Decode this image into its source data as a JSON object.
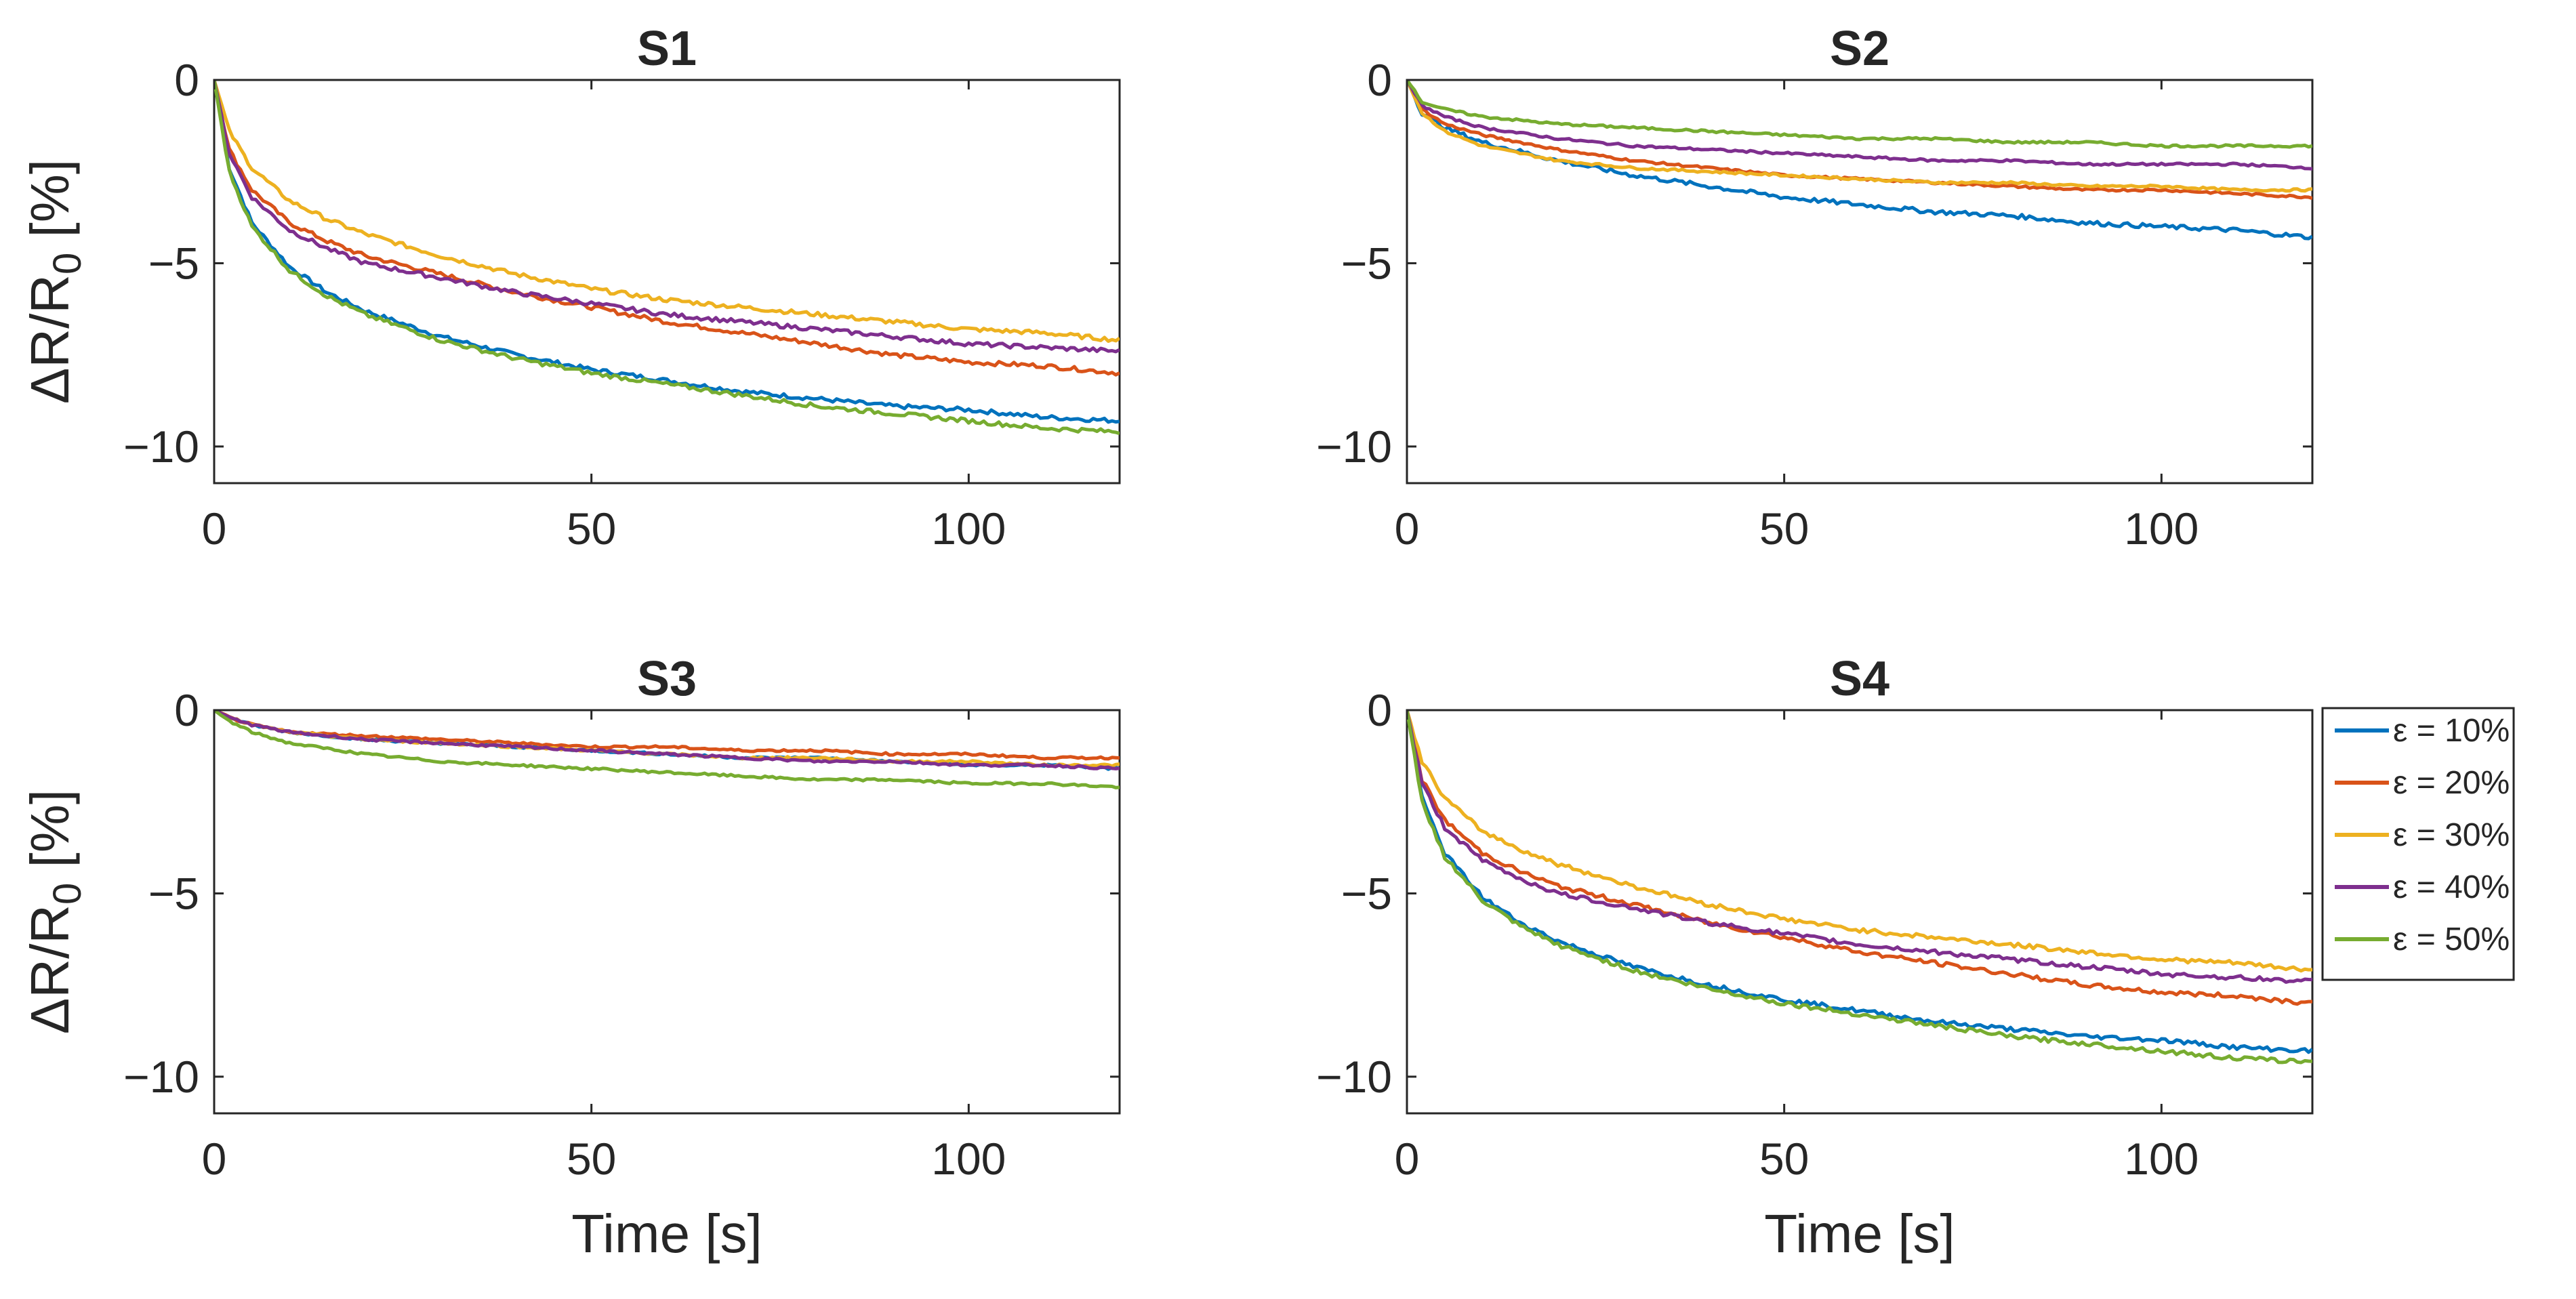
{
  "chart_data": [
    {
      "type": "line",
      "title": "S1",
      "xlabel": "",
      "ylabel": "ΔR/R0 [%]",
      "xlim": [
        0,
        120
      ],
      "ylim": [
        -11,
        0
      ],
      "xticks": [
        0,
        50,
        100
      ],
      "yticks": [
        0,
        -5,
        -10
      ],
      "grid": false,
      "series": [
        {
          "name": "ε = 10%",
          "color": "#0072BD",
          "x": [
            0,
            2,
            5,
            10,
            15,
            20,
            30,
            40,
            50,
            60,
            70,
            80,
            90,
            100,
            110,
            120
          ],
          "y": [
            0,
            -2.4,
            -3.9,
            -5.1,
            -5.8,
            -6.3,
            -7.0,
            -7.5,
            -7.9,
            -8.2,
            -8.5,
            -8.7,
            -8.9,
            -9.0,
            -9.2,
            -9.3
          ]
        },
        {
          "name": "ε = 20%",
          "color": "#D95319",
          "x": [
            0,
            2,
            5,
            10,
            15,
            20,
            30,
            40,
            50,
            60,
            70,
            80,
            90,
            100,
            110,
            120
          ],
          "y": [
            0,
            -1.9,
            -3.0,
            -3.9,
            -4.4,
            -4.8,
            -5.3,
            -5.8,
            -6.2,
            -6.6,
            -6.9,
            -7.2,
            -7.5,
            -7.7,
            -7.8,
            -8.0
          ]
        },
        {
          "name": "ε = 30%",
          "color": "#EDB120",
          "x": [
            0,
            2,
            5,
            10,
            15,
            20,
            30,
            40,
            50,
            60,
            70,
            80,
            90,
            100,
            110,
            120
          ],
          "y": [
            0,
            -1.4,
            -2.4,
            -3.3,
            -3.8,
            -4.2,
            -4.8,
            -5.3,
            -5.7,
            -6.0,
            -6.2,
            -6.4,
            -6.6,
            -6.8,
            -6.9,
            -7.1
          ]
        },
        {
          "name": "ε = 40%",
          "color": "#7E2F8E",
          "x": [
            0,
            2,
            5,
            10,
            15,
            20,
            30,
            40,
            50,
            60,
            70,
            80,
            90,
            100,
            110,
            120
          ],
          "y": [
            0,
            -2.0,
            -3.2,
            -4.1,
            -4.6,
            -5.0,
            -5.4,
            -5.8,
            -6.1,
            -6.4,
            -6.6,
            -6.8,
            -7.0,
            -7.2,
            -7.3,
            -7.4
          ]
        },
        {
          "name": "ε = 50%",
          "color": "#77AC30",
          "x": [
            0,
            2,
            5,
            10,
            15,
            20,
            30,
            40,
            50,
            60,
            70,
            80,
            90,
            100,
            110,
            120
          ],
          "y": [
            0,
            -2.5,
            -4.0,
            -5.2,
            -5.9,
            -6.4,
            -7.1,
            -7.6,
            -8.0,
            -8.3,
            -8.6,
            -8.9,
            -9.1,
            -9.3,
            -9.5,
            -9.6
          ]
        }
      ]
    },
    {
      "type": "line",
      "title": "S2",
      "xlabel": "",
      "ylabel": "",
      "xlim": [
        0,
        120
      ],
      "ylim": [
        -11,
        0
      ],
      "xticks": [
        0,
        50,
        100
      ],
      "yticks": [
        0,
        -5,
        -10
      ],
      "grid": false,
      "series": [
        {
          "name": "ε = 10%",
          "color": "#0072BD",
          "x": [
            0,
            2,
            5,
            10,
            20,
            30,
            40,
            50,
            60,
            70,
            80,
            90,
            100,
            110,
            120
          ],
          "y": [
            0,
            -0.9,
            -1.3,
            -1.7,
            -2.2,
            -2.6,
            -2.9,
            -3.2,
            -3.4,
            -3.6,
            -3.7,
            -3.9,
            -4.0,
            -4.1,
            -4.3
          ]
        },
        {
          "name": "ε = 20%",
          "color": "#D95319",
          "x": [
            0,
            2,
            5,
            10,
            20,
            30,
            40,
            50,
            60,
            70,
            80,
            90,
            100,
            110,
            120
          ],
          "y": [
            0,
            -0.8,
            -1.2,
            -1.5,
            -1.9,
            -2.2,
            -2.4,
            -2.6,
            -2.7,
            -2.8,
            -2.9,
            -3.0,
            -3.0,
            -3.1,
            -3.2
          ]
        },
        {
          "name": "ε = 30%",
          "color": "#EDB120",
          "x": [
            0,
            2,
            5,
            10,
            20,
            30,
            40,
            50,
            60,
            70,
            80,
            90,
            100,
            110,
            120
          ],
          "y": [
            0,
            -0.9,
            -1.4,
            -1.8,
            -2.2,
            -2.4,
            -2.5,
            -2.6,
            -2.7,
            -2.8,
            -2.8,
            -2.9,
            -2.9,
            -3.0,
            -3.0
          ]
        },
        {
          "name": "ε = 40%",
          "color": "#7E2F8E",
          "x": [
            0,
            2,
            5,
            10,
            20,
            30,
            40,
            50,
            60,
            70,
            80,
            90,
            100,
            110,
            120
          ],
          "y": [
            0,
            -0.7,
            -1.0,
            -1.3,
            -1.6,
            -1.8,
            -1.9,
            -2.0,
            -2.1,
            -2.2,
            -2.2,
            -2.3,
            -2.3,
            -2.3,
            -2.4
          ]
        },
        {
          "name": "ε = 50%",
          "color": "#77AC30",
          "x": [
            0,
            2,
            5,
            10,
            20,
            30,
            40,
            50,
            60,
            70,
            80,
            90,
            100,
            110,
            120
          ],
          "y": [
            0,
            -0.6,
            -0.8,
            -1.0,
            -1.2,
            -1.3,
            -1.4,
            -1.5,
            -1.6,
            -1.6,
            -1.7,
            -1.7,
            -1.8,
            -1.8,
            -1.8
          ]
        }
      ]
    },
    {
      "type": "line",
      "title": "S3",
      "xlabel": "Time [s]",
      "ylabel": "ΔR/R0 [%]",
      "xlim": [
        0,
        120
      ],
      "ylim": [
        -11,
        0
      ],
      "xticks": [
        0,
        50,
        100
      ],
      "yticks": [
        0,
        -5,
        -10
      ],
      "grid": false,
      "series": [
        {
          "name": "ε = 10%",
          "color": "#0072BD",
          "x": [
            0,
            2,
            5,
            10,
            20,
            30,
            40,
            50,
            60,
            70,
            80,
            90,
            100,
            110,
            120
          ],
          "y": [
            0,
            -0.2,
            -0.4,
            -0.6,
            -0.8,
            -0.9,
            -1.0,
            -1.1,
            -1.2,
            -1.3,
            -1.3,
            -1.4,
            -1.5,
            -1.5,
            -1.6
          ]
        },
        {
          "name": "ε = 20%",
          "color": "#D95319",
          "x": [
            0,
            2,
            5,
            10,
            20,
            30,
            40,
            50,
            60,
            70,
            80,
            90,
            100,
            110,
            120
          ],
          "y": [
            0,
            -0.2,
            -0.4,
            -0.6,
            -0.7,
            -0.8,
            -0.9,
            -1.0,
            -1.0,
            -1.1,
            -1.1,
            -1.2,
            -1.2,
            -1.3,
            -1.3
          ]
        },
        {
          "name": "ε = 30%",
          "color": "#EDB120",
          "x": [
            0,
            2,
            5,
            10,
            20,
            30,
            40,
            50,
            60,
            70,
            80,
            90,
            100,
            110,
            120
          ],
          "y": [
            0,
            -0.2,
            -0.4,
            -0.6,
            -0.8,
            -0.9,
            -1.0,
            -1.1,
            -1.2,
            -1.3,
            -1.3,
            -1.4,
            -1.4,
            -1.5,
            -1.5
          ]
        },
        {
          "name": "ε = 40%",
          "color": "#7E2F8E",
          "x": [
            0,
            2,
            5,
            10,
            20,
            30,
            40,
            50,
            60,
            70,
            80,
            90,
            100,
            110,
            120
          ],
          "y": [
            0,
            -0.2,
            -0.4,
            -0.6,
            -0.8,
            -0.9,
            -1.0,
            -1.1,
            -1.2,
            -1.3,
            -1.4,
            -1.4,
            -1.5,
            -1.5,
            -1.6
          ]
        },
        {
          "name": "ε = 50%",
          "color": "#77AC30",
          "x": [
            0,
            2,
            5,
            10,
            20,
            30,
            40,
            50,
            60,
            70,
            80,
            90,
            100,
            110,
            120
          ],
          "y": [
            0,
            -0.3,
            -0.6,
            -0.9,
            -1.2,
            -1.4,
            -1.5,
            -1.6,
            -1.7,
            -1.8,
            -1.9,
            -1.9,
            -2.0,
            -2.0,
            -2.1
          ]
        }
      ]
    },
    {
      "type": "line",
      "title": "S4",
      "xlabel": "Time [s]",
      "ylabel": "",
      "xlim": [
        0,
        120
      ],
      "ylim": [
        -11,
        0
      ],
      "xticks": [
        0,
        50,
        100
      ],
      "yticks": [
        0,
        -5,
        -10
      ],
      "grid": false,
      "series": [
        {
          "name": "ε = 10%",
          "color": "#0072BD",
          "x": [
            0,
            2,
            5,
            10,
            15,
            20,
            30,
            40,
            50,
            60,
            70,
            80,
            90,
            100,
            110,
            120
          ],
          "y": [
            0,
            -2.4,
            -3.9,
            -5.1,
            -5.8,
            -6.3,
            -7.0,
            -7.5,
            -7.9,
            -8.2,
            -8.5,
            -8.7,
            -8.9,
            -9.0,
            -9.2,
            -9.3
          ]
        },
        {
          "name": "ε = 20%",
          "color": "#D95319",
          "x": [
            0,
            2,
            5,
            10,
            15,
            20,
            30,
            40,
            50,
            60,
            70,
            80,
            90,
            100,
            110,
            120
          ],
          "y": [
            0,
            -1.9,
            -3.0,
            -3.9,
            -4.4,
            -4.8,
            -5.3,
            -5.8,
            -6.2,
            -6.6,
            -6.9,
            -7.2,
            -7.5,
            -7.7,
            -7.8,
            -8.0
          ]
        },
        {
          "name": "ε = 30%",
          "color": "#EDB120",
          "x": [
            0,
            2,
            5,
            10,
            15,
            20,
            30,
            40,
            50,
            60,
            70,
            80,
            90,
            100,
            110,
            120
          ],
          "y": [
            0,
            -1.4,
            -2.4,
            -3.3,
            -3.8,
            -4.2,
            -4.8,
            -5.3,
            -5.7,
            -6.0,
            -6.2,
            -6.4,
            -6.6,
            -6.8,
            -6.9,
            -7.1
          ]
        },
        {
          "name": "ε = 40%",
          "color": "#7E2F8E",
          "x": [
            0,
            2,
            5,
            10,
            15,
            20,
            30,
            40,
            50,
            60,
            70,
            80,
            90,
            100,
            110,
            120
          ],
          "y": [
            0,
            -2.0,
            -3.2,
            -4.1,
            -4.6,
            -5.0,
            -5.4,
            -5.8,
            -6.1,
            -6.4,
            -6.6,
            -6.8,
            -7.0,
            -7.2,
            -7.3,
            -7.4
          ]
        },
        {
          "name": "ε = 50%",
          "color": "#77AC30",
          "x": [
            0,
            2,
            5,
            10,
            15,
            20,
            30,
            40,
            50,
            60,
            70,
            80,
            90,
            100,
            110,
            120
          ],
          "y": [
            0,
            -2.5,
            -4.0,
            -5.2,
            -5.9,
            -6.4,
            -7.1,
            -7.6,
            -8.0,
            -8.3,
            -8.6,
            -8.9,
            -9.1,
            -9.3,
            -9.5,
            -9.6
          ]
        }
      ]
    }
  ],
  "legend": {
    "placement": "right of S4",
    "entries": [
      "ε = 10%",
      "ε = 20%",
      "ε = 30%",
      "ε = 40%",
      "ε = 50%"
    ]
  }
}
